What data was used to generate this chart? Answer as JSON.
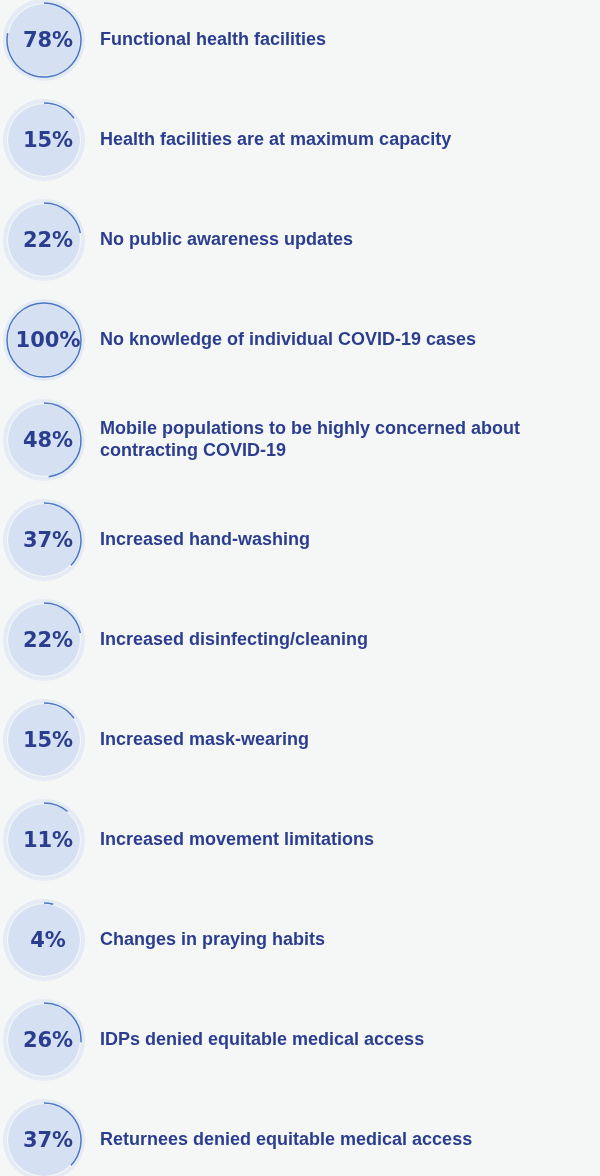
{
  "chart_data": {
    "type": "other",
    "categories": [
      "Functional health facilities",
      "Health facilities are at maximum capacity",
      "No public awareness updates",
      "No knowledge of individual COVID-19 cases",
      "Mobile populations to be highly concerned about contracting COVID-19",
      "Increased hand-washing",
      "Increased disinfecting/cleaning",
      "Increased mask-wearing",
      "Increased movement limitations",
      "Changes in praying habits",
      "IDPs denied equitable medical access",
      "Returnees denied equitable medical access"
    ],
    "values": [
      78,
      15,
      22,
      100,
      48,
      37,
      22,
      15,
      11,
      4,
      26,
      37
    ],
    "value_labels": [
      "78%",
      "15%",
      "22%",
      "100%",
      "48%",
      "37%",
      "22%",
      "15%",
      "11%",
      "4%",
      "26%",
      "37%"
    ],
    "color": "#d5e1f2"
  }
}
